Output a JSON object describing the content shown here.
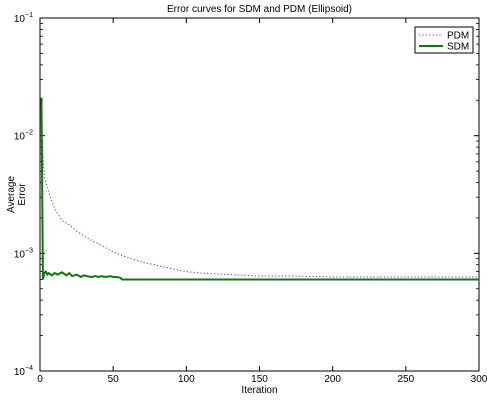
{
  "chart_data": {
    "type": "line",
    "title": "Error curves for SDM and PDM (Ellipsoid)",
    "xlabel": "Iteration",
    "ylabel_lines": [
      "Average",
      "Error"
    ],
    "xlim": [
      0,
      300
    ],
    "ylim": [
      0.0001,
      0.1
    ],
    "yscale": "log",
    "x_ticks": [
      0,
      50,
      100,
      150,
      200,
      250,
      300
    ],
    "x_tick_labels": [
      "0",
      "50",
      "100",
      "150",
      "200",
      "250",
      "300"
    ],
    "y_ticks": [
      0.0001,
      0.001,
      0.01,
      0.1
    ],
    "y_tick_labels": [
      {
        "base": "10",
        "exp": "−4"
      },
      {
        "base": "10",
        "exp": "−3"
      },
      {
        "base": "10",
        "exp": "−2"
      },
      {
        "base": "10",
        "exp": "−1"
      }
    ],
    "grid": false,
    "legend_position": "top-right",
    "series": [
      {
        "name": "PDM",
        "color": "#3a3ad4",
        "style": "dotted",
        "x": [
          1,
          2,
          3,
          5,
          8,
          10,
          15,
          20,
          25,
          30,
          40,
          50,
          60,
          70,
          80,
          90,
          100,
          110,
          120,
          130,
          140,
          150,
          175,
          200,
          225,
          250,
          275,
          300
        ],
        "y": [
          0.012,
          0.0068,
          0.0045,
          0.0036,
          0.0028,
          0.0024,
          0.0019,
          0.00175,
          0.00155,
          0.0014,
          0.0012,
          0.00103,
          0.00092,
          0.00084,
          0.00079,
          0.00074,
          0.0007,
          0.00068,
          0.00067,
          0.00066,
          0.00065,
          0.00064,
          0.00064,
          0.00063,
          0.00063,
          0.00063,
          0.00063,
          0.00063
        ]
      },
      {
        "name": "SDM",
        "color": "#0d7a0d",
        "style": "solid",
        "x": [
          1,
          2,
          3,
          4,
          5,
          6,
          8,
          10,
          12,
          15,
          18,
          20,
          22,
          25,
          28,
          30,
          32,
          35,
          38,
          40,
          42,
          45,
          48,
          50,
          52,
          55,
          56,
          60,
          80,
          100,
          150,
          200,
          250,
          300
        ],
        "y": [
          0.021,
          0.0006,
          0.00068,
          0.0007,
          0.00066,
          0.00068,
          0.00065,
          0.00068,
          0.00066,
          0.00069,
          0.00065,
          0.00068,
          0.00064,
          0.00066,
          0.00063,
          0.00065,
          0.00064,
          0.00063,
          0.00064,
          0.00063,
          0.00064,
          0.00063,
          0.00064,
          0.00063,
          0.00063,
          0.00062,
          0.0006,
          0.0006,
          0.0006,
          0.0006,
          0.0006,
          0.0006,
          0.0006,
          0.0006
        ]
      }
    ]
  }
}
